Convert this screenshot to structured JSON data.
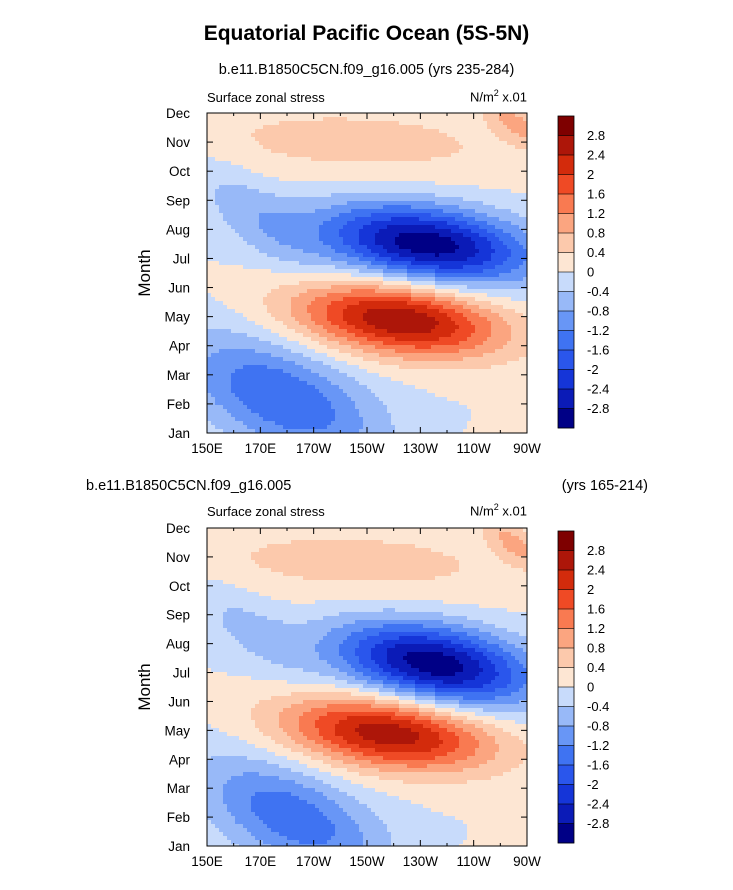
{
  "title": "Equatorial Pacific Ocean (5S-5N)",
  "chart_data": [
    {
      "type": "heatmap",
      "subtitle": "b.e11.B1850C5CN.f09_g16.005 (yrs 235-284)",
      "left_label": "Surface zonal stress",
      "units_prefix": "N/m",
      "units_sup": "2",
      "units_suffix": " x.01",
      "ylabel": "Month",
      "x_ticks": [
        "150E",
        "170E",
        "170W",
        "150W",
        "130W",
        "110W",
        "90W"
      ],
      "y_ticks": [
        "Jan",
        "Feb",
        "Mar",
        "Apr",
        "May",
        "Jun",
        "Jul",
        "Aug",
        "Sep",
        "Oct",
        "Nov",
        "Dec"
      ],
      "xlim": [
        150,
        270
      ],
      "ylim": [
        1,
        12
      ],
      "features": [
        {
          "x": 232,
          "y": 7.5,
          "amp": -3.1,
          "sx": 26,
          "sy": 0.95
        },
        {
          "x": 222,
          "y": 4.9,
          "amp": 2.8,
          "sx": 26,
          "sy": 0.9
        },
        {
          "x": 178,
          "y": 2.2,
          "amp": -1.6,
          "sx": 22,
          "sy": 1.5
        },
        {
          "x": 168,
          "y": 8.5,
          "amp": -0.6,
          "sx": 12,
          "sy": 1.4
        },
        {
          "x": 205,
          "y": 11.0,
          "amp": 0.55,
          "sx": 50,
          "sy": 1.0
        },
        {
          "x": 265,
          "y": 11.7,
          "amp": 0.8,
          "sx": 6,
          "sy": 0.6
        }
      ]
    },
    {
      "type": "heatmap",
      "subtitle": "b.e11.B1850C5CN.f09_g16.005",
      "subtitle_right": "(yrs 165-214)",
      "left_label": "Surface zonal stress",
      "units_prefix": "N/m",
      "units_sup": "2",
      "units_suffix": " x.01",
      "ylabel": "Month",
      "x_ticks": [
        "150E",
        "170E",
        "170W",
        "150W",
        "130W",
        "110W",
        "90W"
      ],
      "y_ticks": [
        "Jan",
        "Feb",
        "Mar",
        "Apr",
        "May",
        "Jun",
        "Jul",
        "Aug",
        "Sep",
        "Oct",
        "Nov",
        "Dec"
      ],
      "xlim": [
        150,
        270
      ],
      "ylim": [
        1,
        12
      ],
      "features": [
        {
          "x": 235,
          "y": 7.3,
          "amp": -3.1,
          "sx": 24,
          "sy": 1.0
        },
        {
          "x": 218,
          "y": 4.9,
          "amp": 2.7,
          "sx": 26,
          "sy": 0.9
        },
        {
          "x": 182,
          "y": 2.0,
          "amp": -1.5,
          "sx": 20,
          "sy": 1.4
        },
        {
          "x": 165,
          "y": 8.6,
          "amp": -0.5,
          "sx": 12,
          "sy": 1.3
        },
        {
          "x": 205,
          "y": 10.8,
          "amp": 0.55,
          "sx": 50,
          "sy": 1.0
        },
        {
          "x": 265,
          "y": 11.5,
          "amp": 0.8,
          "sx": 6,
          "sy": 0.6
        }
      ]
    }
  ],
  "colorbar": {
    "levels": [
      -2.8,
      -2.4,
      -2,
      -1.6,
      -1.2,
      -0.8,
      -0.4,
      0,
      0.4,
      0.8,
      1.2,
      1.6,
      2,
      2.4,
      2.8
    ],
    "labels": [
      "-2.8",
      "-2.4",
      "-2",
      "-1.6",
      "-1.2",
      "-0.8",
      "-0.4",
      "0",
      "0.4",
      "0.8",
      "1.2",
      "1.6",
      "2",
      "2.4",
      "2.8"
    ],
    "colors": [
      "#000086",
      "#0b1bb7",
      "#1535d8",
      "#2a56ec",
      "#3f73f2",
      "#6896f6",
      "#98b9f8",
      "#c8dbfb",
      "#fde6d3",
      "#fcc9ac",
      "#fba580",
      "#f97a51",
      "#ef4a25",
      "#d32b0c",
      "#ad1609",
      "#7e0000"
    ]
  }
}
